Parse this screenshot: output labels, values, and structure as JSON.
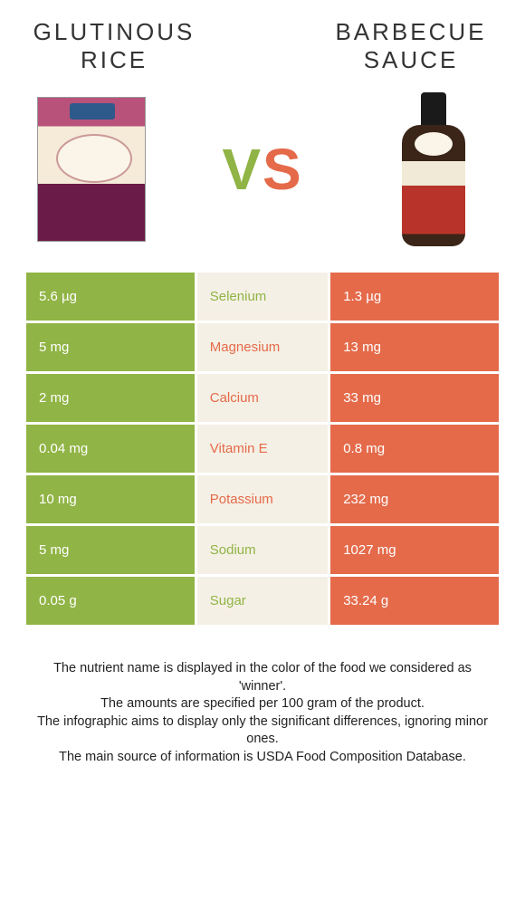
{
  "left": {
    "title": "Glutinous rice"
  },
  "right": {
    "title": "Barbecue sauce"
  },
  "vs_v": "V",
  "vs_s": "S",
  "colors": {
    "green": "#90b445",
    "orange": "#e46a4a",
    "mid_bg": "#f5f0e5",
    "white": "#ffffff"
  },
  "rows": [
    {
      "left": "5.6 µg",
      "label": "Selenium",
      "right": "1.3 µg",
      "winner": "green"
    },
    {
      "left": "5 mg",
      "label": "Magnesium",
      "right": "13 mg",
      "winner": "orange"
    },
    {
      "left": "2 mg",
      "label": "Calcium",
      "right": "33 mg",
      "winner": "orange"
    },
    {
      "left": "0.04 mg",
      "label": "Vitamin E",
      "right": "0.8 mg",
      "winner": "orange"
    },
    {
      "left": "10 mg",
      "label": "Potassium",
      "right": "232 mg",
      "winner": "orange"
    },
    {
      "left": "5 mg",
      "label": "Sodium",
      "right": "1027 mg",
      "winner": "green"
    },
    {
      "left": "0.05 g",
      "label": "Sugar",
      "right": "33.24 g",
      "winner": "green"
    }
  ],
  "footer": {
    "l1": "The nutrient name is displayed in the color of the food we considered as 'winner'.",
    "l2": "The amounts are specified per 100 gram of the product.",
    "l3": "The infographic aims to display only the significant differences, ignoring minor ones.",
    "l4": "The main source of information is USDA Food Composition Database."
  }
}
